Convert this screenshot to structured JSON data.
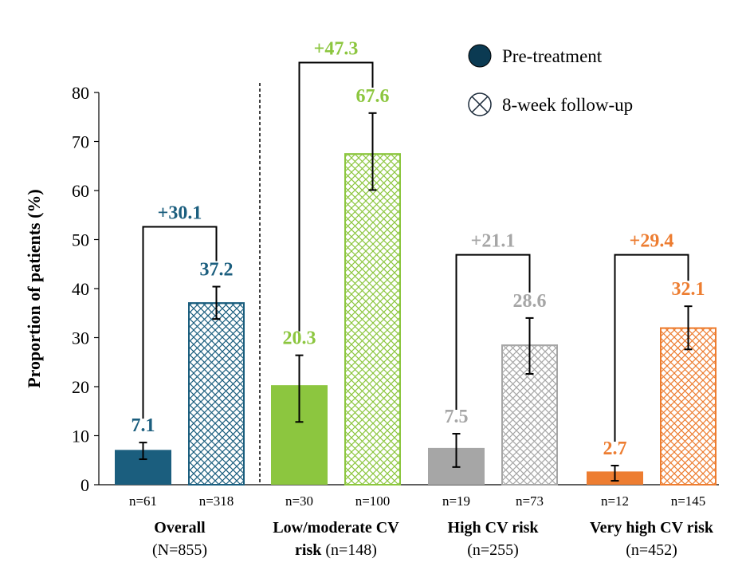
{
  "chart_data": {
    "type": "bar",
    "title": "",
    "xlabel": "",
    "ylabel": "Proportion of patients (%)",
    "ylim": [
      0,
      80
    ],
    "yticks": [
      "0",
      "10",
      "20",
      "30",
      "40",
      "50",
      "60",
      "70",
      "80"
    ],
    "grid": false,
    "legend_position": "top-right",
    "legend": [
      {
        "label": "Pre-treatment",
        "style": "solid"
      },
      {
        "label": "8-week follow-up",
        "style": "crosshatch"
      }
    ],
    "groups": [
      {
        "label_bold": "Overall",
        "label_rest": "",
        "label_line2": "(N=855)",
        "color": "#1b5e7e",
        "change": "+30.1",
        "bars": [
          {
            "series": "Pre-treatment",
            "value": 7.1,
            "value_label": "7.1",
            "err_low": 5.2,
            "err_high": 8.6,
            "n": "n=61"
          },
          {
            "series": "8-week follow-up",
            "value": 37.2,
            "value_label": "37.2",
            "err_low": 33.8,
            "err_high": 40.4,
            "n": "n=318"
          }
        ]
      },
      {
        "label_bold": "Low/moderate CV",
        "label_rest": "",
        "label_line2_bold": "risk",
        "label_line2": " (n=148)",
        "color": "#8cc63f",
        "change": "+47.3",
        "bars": [
          {
            "series": "Pre-treatment",
            "value": 20.3,
            "value_label": "20.3",
            "err_low": 12.8,
            "err_high": 26.4,
            "n": "n=30"
          },
          {
            "series": "8-week follow-up",
            "value": 67.6,
            "value_label": "67.6",
            "err_low": 60.1,
            "err_high": 75.8,
            "n": "n=100"
          }
        ]
      },
      {
        "label_bold": "High CV risk",
        "label_rest": "",
        "label_line2": "(n=255)",
        "color": "#a6a6a6",
        "change": "+21.1",
        "bars": [
          {
            "series": "Pre-treatment",
            "value": 7.5,
            "value_label": "7.5",
            "err_low": 3.6,
            "err_high": 10.4,
            "n": "n=19"
          },
          {
            "series": "8-week follow-up",
            "value": 28.6,
            "value_label": "28.6",
            "err_low": 22.6,
            "err_high": 34.0,
            "n": "n=73"
          }
        ]
      },
      {
        "label_bold": "Very high CV risk",
        "label_rest": "",
        "label_line2": "(n=452)",
        "color": "#ed7d31",
        "change": "+29.4",
        "bars": [
          {
            "series": "Pre-treatment",
            "value": 2.7,
            "value_label": "2.7",
            "err_low": 0.8,
            "err_high": 3.9,
            "n": "n=12"
          },
          {
            "series": "8-week follow-up",
            "value": 32.1,
            "value_label": "32.1",
            "err_low": 27.6,
            "err_high": 36.4,
            "n": "n=145"
          }
        ]
      }
    ]
  }
}
